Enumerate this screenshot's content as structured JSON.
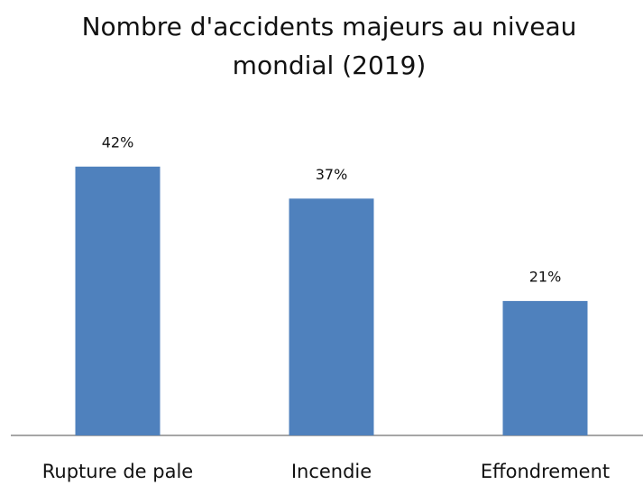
{
  "chart_data": {
    "type": "bar",
    "title": "Nombre d'accidents majeurs au niveau mondial (2019)",
    "categories": [
      "Rupture de pale",
      "Incendie",
      "Effondrement"
    ],
    "values": [
      42,
      37,
      21
    ],
    "value_labels": [
      "42%",
      "37%",
      "21%"
    ],
    "color": "#4f81bd"
  }
}
